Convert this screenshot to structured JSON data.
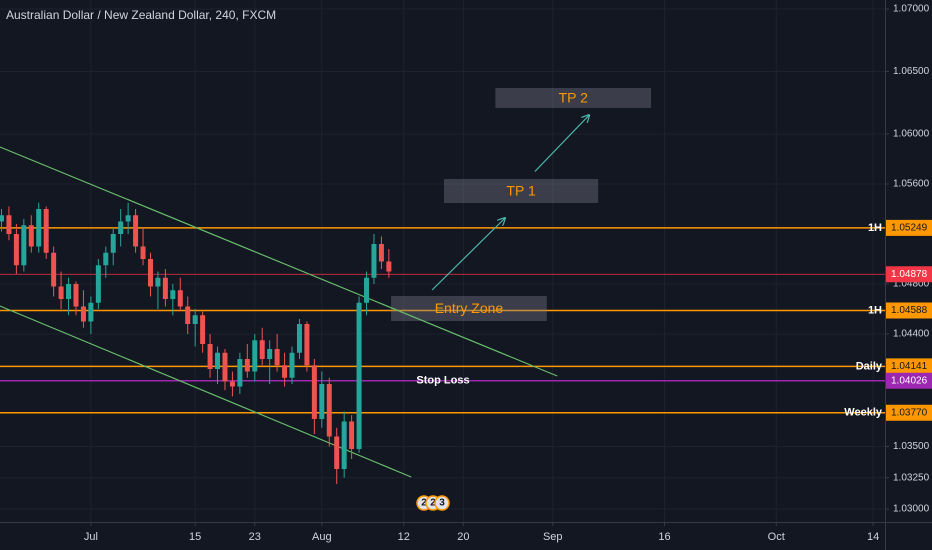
{
  "chart_data": {
    "type": "candlestick",
    "title": "Australian Dollar / New Zealand Dollar, 240, FXCM",
    "x": [
      -12,
      -11,
      -10,
      -9,
      -8,
      -7,
      -6,
      -5,
      -4,
      -3,
      -2,
      -1,
      0,
      1,
      2,
      3,
      4,
      5,
      6,
      7,
      8,
      9,
      10,
      11,
      12,
      13,
      14,
      15,
      16,
      17,
      18,
      19,
      20,
      21,
      22,
      23,
      24,
      25,
      26,
      27,
      28,
      29,
      30,
      31,
      32,
      33,
      34,
      35,
      36,
      37,
      38,
      39,
      40
    ],
    "open": [
      1.053,
      1.0535,
      1.052,
      1.0495,
      1.0527,
      1.051,
      1.054,
      1.0505,
      1.0478,
      1.0468,
      1.048,
      1.0462,
      1.045,
      1.0465,
      1.0495,
      1.0505,
      1.052,
      1.053,
      1.0535,
      1.051,
      1.05,
      1.0478,
      1.0485,
      1.0468,
      1.0475,
      1.0462,
      1.0448,
      1.0455,
      1.0432,
      1.0412,
      1.0425,
      1.0402,
      1.0398,
      1.042,
      1.041,
      1.0435,
      1.042,
      1.0428,
      1.0415,
      1.0405,
      1.0425,
      1.0448,
      1.0415,
      1.0372,
      1.04,
      1.0358,
      1.0332,
      1.037,
      1.0348,
      1.0465,
      1.0485,
      1.0512,
      1.0498
    ],
    "high": [
      1.054,
      1.0542,
      1.0528,
      1.0532,
      1.0535,
      1.0545,
      1.0542,
      1.051,
      1.049,
      1.0485,
      1.0482,
      1.0475,
      1.047,
      1.05,
      1.051,
      1.0525,
      1.054,
      1.0545,
      1.054,
      1.0525,
      1.0505,
      1.049,
      1.0492,
      1.048,
      1.0485,
      1.047,
      1.046,
      1.0458,
      1.044,
      1.043,
      1.0428,
      1.041,
      1.0425,
      1.0432,
      1.044,
      1.0445,
      1.0435,
      1.044,
      1.0425,
      1.043,
      1.0452,
      1.045,
      1.042,
      1.041,
      1.0405,
      1.0365,
      1.0378,
      1.0375,
      1.047,
      1.049,
      1.052,
      1.0518,
      1.0508
    ],
    "low": [
      1.0522,
      1.0515,
      1.0488,
      1.049,
      1.0505,
      1.0505,
      1.05,
      1.047,
      1.046,
      1.0455,
      1.0455,
      1.0445,
      1.044,
      1.046,
      1.0485,
      1.0495,
      1.051,
      1.052,
      1.0505,
      1.0495,
      1.047,
      1.046,
      1.0462,
      1.0455,
      1.0458,
      1.044,
      1.043,
      1.0425,
      1.0405,
      1.04,
      1.0395,
      1.039,
      1.0392,
      1.0405,
      1.0402,
      1.0415,
      1.04,
      1.041,
      1.0398,
      1.04,
      1.042,
      1.041,
      1.036,
      1.0365,
      1.035,
      1.032,
      1.0325,
      1.034,
      1.0345,
      1.0455,
      1.048,
      1.0492,
      1.0485
    ],
    "close": [
      1.0535,
      1.052,
      1.0495,
      1.0527,
      1.051,
      1.054,
      1.0505,
      1.0478,
      1.0468,
      1.048,
      1.0462,
      1.045,
      1.0465,
      1.0495,
      1.0505,
      1.052,
      1.053,
      1.0535,
      1.051,
      1.05,
      1.0478,
      1.0485,
      1.0468,
      1.0475,
      1.0462,
      1.0448,
      1.0455,
      1.0432,
      1.0412,
      1.0425,
      1.0402,
      1.0398,
      1.042,
      1.041,
      1.0435,
      1.042,
      1.0428,
      1.0415,
      1.0405,
      1.0425,
      1.0448,
      1.0415,
      1.0372,
      1.04,
      1.0358,
      1.0332,
      1.037,
      1.0348,
      1.0465,
      1.0485,
      1.0512,
      1.0498,
      1.049
    ],
    "up_color": "#26a69a",
    "down_color": "#ef5350",
    "xlim": [
      -12.2,
      106.6
    ],
    "xticks": [
      {
        "value": 0,
        "label": "Jul"
      },
      {
        "value": 14,
        "label": "15"
      },
      {
        "value": 22,
        "label": "23"
      },
      {
        "value": 31,
        "label": "Aug"
      },
      {
        "value": 42,
        "label": "12"
      },
      {
        "value": 50,
        "label": "20"
      },
      {
        "value": 62,
        "label": "Sep"
      },
      {
        "value": 77,
        "label": "16"
      },
      {
        "value": 92,
        "label": "Oct"
      },
      {
        "value": 105,
        "label": "14"
      }
    ],
    "ylim": [
      1.02896,
      1.07072
    ],
    "yticks": [
      {
        "value": 1.07,
        "label": "1.07000"
      },
      {
        "value": 1.065,
        "label": "1.06500"
      },
      {
        "value": 1.06,
        "label": "1.06000"
      },
      {
        "value": 1.056,
        "label": "1.05600"
      },
      {
        "value": 1.048,
        "label": "1.04800"
      },
      {
        "value": 1.044,
        "label": "1.04400"
      },
      {
        "value": 1.035,
        "label": "1.03500"
      },
      {
        "value": 1.0325,
        "label": "1.03250"
      },
      {
        "value": 1.03,
        "label": "1.03000"
      }
    ],
    "grid": true,
    "levels": [
      {
        "value": 1.05249,
        "tag": "1H",
        "color": "#ff9800"
      },
      {
        "value": 1.04588,
        "tag": "1H",
        "color": "#ff9800"
      },
      {
        "value": 1.04141,
        "tag": "Daily",
        "color": "#ff9800"
      },
      {
        "value": 1.04026,
        "note": "Stop Loss",
        "color": "#9c27b0"
      },
      {
        "value": 1.0377,
        "label": "1.03770",
        "tag": "Weekly",
        "color": "#ff9800"
      }
    ],
    "last_price": {
      "value": 1.04878,
      "color": "#f23645"
    },
    "zones": [
      {
        "label": "TP 2",
        "x": [
          54.3,
          75.2
        ],
        "y": [
          1.06368,
          1.06208
        ]
      },
      {
        "label": "TP 1",
        "x": [
          47.4,
          68.1
        ],
        "y": [
          1.0564,
          1.05448
        ]
      },
      {
        "label": "Entry Zone",
        "x": [
          40.3,
          61.2
        ],
        "y": [
          1.04704,
          1.04504
        ]
      }
    ],
    "trend_lines": [
      {
        "x": [
          -12.2,
          62.6
        ],
        "y": [
          1.05896,
          1.04064
        ],
        "color": "#66bb6a"
      },
      {
        "x": [
          -12.2,
          43.0
        ],
        "y": [
          1.04624,
          1.03256
        ],
        "color": "#66bb6a"
      }
    ],
    "arrows": [
      {
        "x": [
          45.8,
          55.6
        ],
        "y": [
          1.04752,
          1.05328
        ],
        "color": "#4db6ac"
      },
      {
        "x": [
          59.6,
          66.9
        ],
        "y": [
          1.057,
          1.06152
        ],
        "color": "#4db6ac"
      }
    ],
    "events": [
      "2",
      "2",
      "3"
    ]
  }
}
